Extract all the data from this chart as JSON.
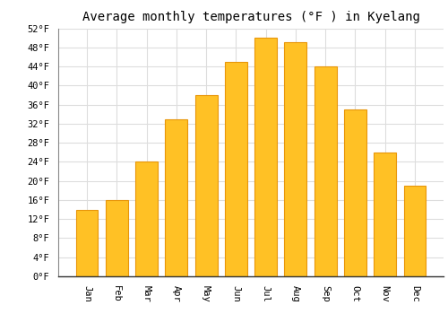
{
  "title": "Average monthly temperatures (°F ) in Kyelang",
  "months": [
    "Jan",
    "Feb",
    "Mar",
    "Apr",
    "May",
    "Jun",
    "Jul",
    "Aug",
    "Sep",
    "Oct",
    "Nov",
    "Dec"
  ],
  "values": [
    14,
    16,
    24,
    33,
    38,
    45,
    50,
    49,
    44,
    35,
    26,
    19
  ],
  "bar_color": "#FFC125",
  "bar_edge_color": "#E8960A",
  "ylim": [
    0,
    52
  ],
  "yticks": [
    0,
    4,
    8,
    12,
    16,
    20,
    24,
    28,
    32,
    36,
    40,
    44,
    48,
    52
  ],
  "ytick_labels": [
    "0°F",
    "4°F",
    "8°F",
    "12°F",
    "16°F",
    "20°F",
    "24°F",
    "28°F",
    "32°F",
    "36°F",
    "40°F",
    "44°F",
    "48°F",
    "52°F"
  ],
  "background_color": "#FFFFFF",
  "grid_color": "#DDDDDD",
  "title_fontsize": 10,
  "tick_fontsize": 7.5,
  "font_family": "monospace"
}
